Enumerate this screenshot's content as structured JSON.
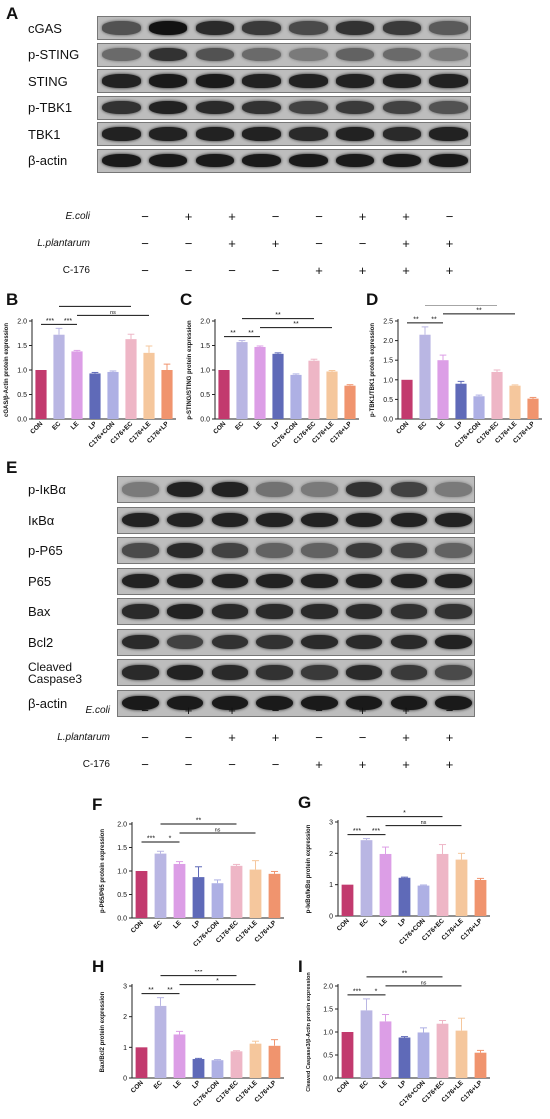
{
  "panels": {
    "A": "A",
    "B": "B",
    "C": "C",
    "D": "D",
    "E": "E",
    "F": "F",
    "G": "G",
    "H": "H",
    "I": "I"
  },
  "blot_A": {
    "labels": [
      "cGAS",
      "p-STING",
      "STING",
      "p-TBK1",
      "TBK1",
      "β-actin"
    ],
    "intensity": [
      [
        0.55,
        0.95,
        0.8,
        0.7,
        0.6,
        0.75,
        0.7,
        0.5
      ],
      [
        0.4,
        0.75,
        0.55,
        0.4,
        0.3,
        0.45,
        0.4,
        0.3
      ],
      [
        0.85,
        0.9,
        0.9,
        0.85,
        0.85,
        0.85,
        0.85,
        0.85
      ],
      [
        0.75,
        0.85,
        0.8,
        0.75,
        0.65,
        0.7,
        0.65,
        0.55
      ],
      [
        0.85,
        0.85,
        0.85,
        0.85,
        0.8,
        0.85,
        0.8,
        0.85
      ],
      [
        0.9,
        0.9,
        0.9,
        0.9,
        0.9,
        0.9,
        0.9,
        0.9
      ]
    ]
  },
  "treatments_A": [
    {
      "label": "E.coli",
      "italic": true,
      "signs": [
        "−",
        "+",
        "+",
        "−",
        "−",
        "+",
        "+",
        "−"
      ]
    },
    {
      "label": "L.plantarum",
      "italic": true,
      "signs": [
        "−",
        "−",
        "+",
        "+",
        "−",
        "−",
        "+",
        "+"
      ]
    },
    {
      "label": "C-176",
      "italic": false,
      "signs": [
        "−",
        "−",
        "−",
        "−",
        "+",
        "+",
        "+",
        "+"
      ]
    }
  ],
  "blot_E": {
    "labels": [
      "p-IκBα",
      "IκBα",
      "p-P65",
      "P65",
      "Bax",
      "Bcl2",
      "Cleaved Caspase3",
      "β-actin"
    ],
    "intensity": [
      [
        0.3,
        0.85,
        0.85,
        0.35,
        0.3,
        0.75,
        0.65,
        0.3
      ],
      [
        0.85,
        0.85,
        0.85,
        0.85,
        0.85,
        0.85,
        0.85,
        0.85
      ],
      [
        0.6,
        0.8,
        0.65,
        0.45,
        0.45,
        0.7,
        0.65,
        0.45
      ],
      [
        0.85,
        0.85,
        0.85,
        0.85,
        0.85,
        0.85,
        0.85,
        0.85
      ],
      [
        0.8,
        0.85,
        0.8,
        0.8,
        0.8,
        0.8,
        0.75,
        0.75
      ],
      [
        0.8,
        0.65,
        0.75,
        0.75,
        0.8,
        0.8,
        0.8,
        0.85
      ],
      [
        0.8,
        0.85,
        0.8,
        0.75,
        0.7,
        0.8,
        0.7,
        0.6
      ],
      [
        0.9,
        0.9,
        0.9,
        0.9,
        0.9,
        0.9,
        0.9,
        0.9
      ]
    ]
  },
  "treatments_E": [
    {
      "label": "E.coli",
      "italic": true,
      "signs": [
        "−",
        "+",
        "+",
        "−",
        "−",
        "+",
        "+",
        "−"
      ]
    },
    {
      "label": "L.plantarum",
      "italic": true,
      "signs": [
        "−",
        "−",
        "+",
        "+",
        "−",
        "−",
        "+",
        "+"
      ]
    },
    {
      "label": "C-176",
      "italic": false,
      "signs": [
        "−",
        "−",
        "−",
        "−",
        "+",
        "+",
        "+",
        "+"
      ]
    }
  ],
  "colors": [
    "#c23a6e",
    "#b9b6e3",
    "#dc9ee6",
    "#5f6ab8",
    "#aeb0e4",
    "#eeb6c6",
    "#f5c79d",
    "#f0946e"
  ],
  "chart_data": [
    {
      "id": "B",
      "type": "bar",
      "categories": [
        "CON",
        "EC",
        "LE",
        "LP",
        "C176+CON",
        "C176+EC",
        "C176+LE",
        "C176+LP"
      ],
      "values": [
        1.0,
        1.72,
        1.38,
        0.93,
        0.96,
        1.63,
        1.35,
        1.0
      ],
      "errors": [
        0.0,
        0.13,
        0.02,
        0.02,
        0.02,
        0.1,
        0.14,
        0.12
      ],
      "ylabel": "cGAS/β-Actin protein expression",
      "ylim": [
        0,
        2.0
      ],
      "yticks": [
        0.0,
        0.5,
        1.0,
        1.5,
        2.0
      ],
      "sig": [
        {
          "from": 0,
          "to": 1,
          "label": "***",
          "level": 0
        },
        {
          "from": 1,
          "to": 2,
          "label": "***",
          "level": 0
        },
        {
          "from": 1,
          "to": 5,
          "label": "**",
          "level": 2
        },
        {
          "from": 2,
          "to": 6,
          "label": "ns",
          "level": 1
        }
      ]
    },
    {
      "id": "C",
      "type": "bar",
      "categories": [
        "CON",
        "EC",
        "LE",
        "LP",
        "C176+CON",
        "C176+EC",
        "C176+LE",
        "C176+LP"
      ],
      "values": [
        1.0,
        1.57,
        1.47,
        1.33,
        0.9,
        1.19,
        0.97,
        0.68
      ],
      "errors": [
        0.0,
        0.03,
        0.02,
        0.02,
        0.02,
        0.03,
        0.02,
        0.02
      ],
      "ylabel": "p-STING/STING protein expression",
      "ylim": [
        0,
        2.0
      ],
      "yticks": [
        0.0,
        0.5,
        1.0,
        1.5,
        2.0
      ],
      "sig": [
        {
          "from": 0,
          "to": 1,
          "label": "**",
          "level": 0
        },
        {
          "from": 1,
          "to": 2,
          "label": "**",
          "level": 0
        },
        {
          "from": 1,
          "to": 5,
          "label": "**",
          "level": 2
        },
        {
          "from": 2,
          "to": 6,
          "label": "**",
          "level": 1
        }
      ]
    },
    {
      "id": "D",
      "type": "bar",
      "categories": [
        "CON",
        "EC",
        "LE",
        "LP",
        "C176+CON",
        "C176+EC",
        "C176+LE",
        "C176+LP"
      ],
      "values": [
        1.0,
        2.15,
        1.5,
        0.9,
        0.58,
        1.2,
        0.85,
        0.52
      ],
      "errors": [
        0.0,
        0.2,
        0.13,
        0.06,
        0.03,
        0.05,
        0.02,
        0.03
      ],
      "ylabel": "p-TBK1/TBK1 protein expression",
      "ylim": [
        0,
        2.5
      ],
      "yticks": [
        0.0,
        0.5,
        1.0,
        1.5,
        2.0,
        2.5
      ],
      "sig": [
        {
          "from": 0,
          "to": 1,
          "label": "**",
          "level": 0
        },
        {
          "from": 1,
          "to": 2,
          "label": "**",
          "level": 0
        },
        {
          "from": 1,
          "to": 5,
          "label": "**",
          "level": 2
        },
        {
          "from": 2,
          "to": 6,
          "label": "**",
          "level": 1
        }
      ]
    },
    {
      "id": "F",
      "type": "bar",
      "categories": [
        "CON",
        "EC",
        "LE",
        "LP",
        "C176+CON",
        "C176+EC",
        "C176+LE",
        "C176+LP"
      ],
      "values": [
        1.0,
        1.37,
        1.15,
        0.87,
        0.74,
        1.11,
        1.03,
        0.94
      ],
      "errors": [
        0.0,
        0.05,
        0.05,
        0.22,
        0.07,
        0.03,
        0.19,
        0.05
      ],
      "ylabel": "p-P65/P65 protein expression",
      "ylim": [
        0,
        2.0
      ],
      "yticks": [
        0.0,
        0.5,
        1.0,
        1.5,
        2.0
      ],
      "sig": [
        {
          "from": 0,
          "to": 1,
          "label": "***",
          "level": 0
        },
        {
          "from": 1,
          "to": 2,
          "label": "*",
          "level": 0
        },
        {
          "from": 1,
          "to": 5,
          "label": "**",
          "level": 2
        },
        {
          "from": 2,
          "to": 6,
          "label": "ns",
          "level": 1
        }
      ]
    },
    {
      "id": "G",
      "type": "bar",
      "categories": [
        "CON",
        "EC",
        "LE",
        "LP",
        "C176+CON",
        "C176+EC",
        "C176+LE",
        "C176+LP"
      ],
      "values": [
        1.0,
        2.42,
        1.98,
        1.22,
        0.97,
        1.98,
        1.8,
        1.15
      ],
      "errors": [
        0.0,
        0.05,
        0.22,
        0.02,
        0.02,
        0.3,
        0.2,
        0.05
      ],
      "ylabel": "p-IκBα/IκBα protein expression",
      "ylim": [
        0,
        3
      ],
      "yticks": [
        0,
        1,
        2,
        3
      ],
      "sig": [
        {
          "from": 0,
          "to": 1,
          "label": "***",
          "level": 0
        },
        {
          "from": 1,
          "to": 2,
          "label": "***",
          "level": 0
        },
        {
          "from": 1,
          "to": 5,
          "label": "*",
          "level": 2
        },
        {
          "from": 2,
          "to": 6,
          "label": "ns",
          "level": 1
        }
      ]
    },
    {
      "id": "H",
      "type": "bar",
      "categories": [
        "CON",
        "EC",
        "LE",
        "LP",
        "C176+CON",
        "C176+EC",
        "C176+LE",
        "C176+LP"
      ],
      "values": [
        1.0,
        2.35,
        1.42,
        0.62,
        0.58,
        0.87,
        1.12,
        1.05
      ],
      "errors": [
        0.0,
        0.27,
        0.1,
        0.02,
        0.02,
        0.02,
        0.08,
        0.2
      ],
      "ylabel": "Bax/Bcl2 protein expression",
      "ylim": [
        0,
        3
      ],
      "yticks": [
        0,
        1,
        2,
        3
      ],
      "sig": [
        {
          "from": 0,
          "to": 1,
          "label": "**",
          "level": 0
        },
        {
          "from": 1,
          "to": 2,
          "label": "**",
          "level": 0
        },
        {
          "from": 1,
          "to": 5,
          "label": "***",
          "level": 2
        },
        {
          "from": 2,
          "to": 6,
          "label": "*",
          "level": 1
        }
      ]
    },
    {
      "id": "I",
      "type": "bar",
      "categories": [
        "CON",
        "EC",
        "LE",
        "LP",
        "C176+CON",
        "C176+EC",
        "C176+LE",
        "C176+LP"
      ],
      "values": [
        1.0,
        1.47,
        1.23,
        0.88,
        0.99,
        1.18,
        1.03,
        0.55
      ],
      "errors": [
        0.0,
        0.25,
        0.15,
        0.02,
        0.1,
        0.07,
        0.27,
        0.05
      ],
      "ylabel": "Cleaved Caspase3/β-Actin protein expression",
      "ylim": [
        0,
        2.0
      ],
      "yticks": [
        0.0,
        0.5,
        1.0,
        1.5,
        2.0
      ],
      "sig": [
        {
          "from": 0,
          "to": 1,
          "label": "***",
          "level": 0
        },
        {
          "from": 1,
          "to": 2,
          "label": "*",
          "level": 0
        },
        {
          "from": 1,
          "to": 5,
          "label": "**",
          "level": 2
        },
        {
          "from": 2,
          "to": 6,
          "label": "ns",
          "level": 1
        }
      ]
    }
  ]
}
